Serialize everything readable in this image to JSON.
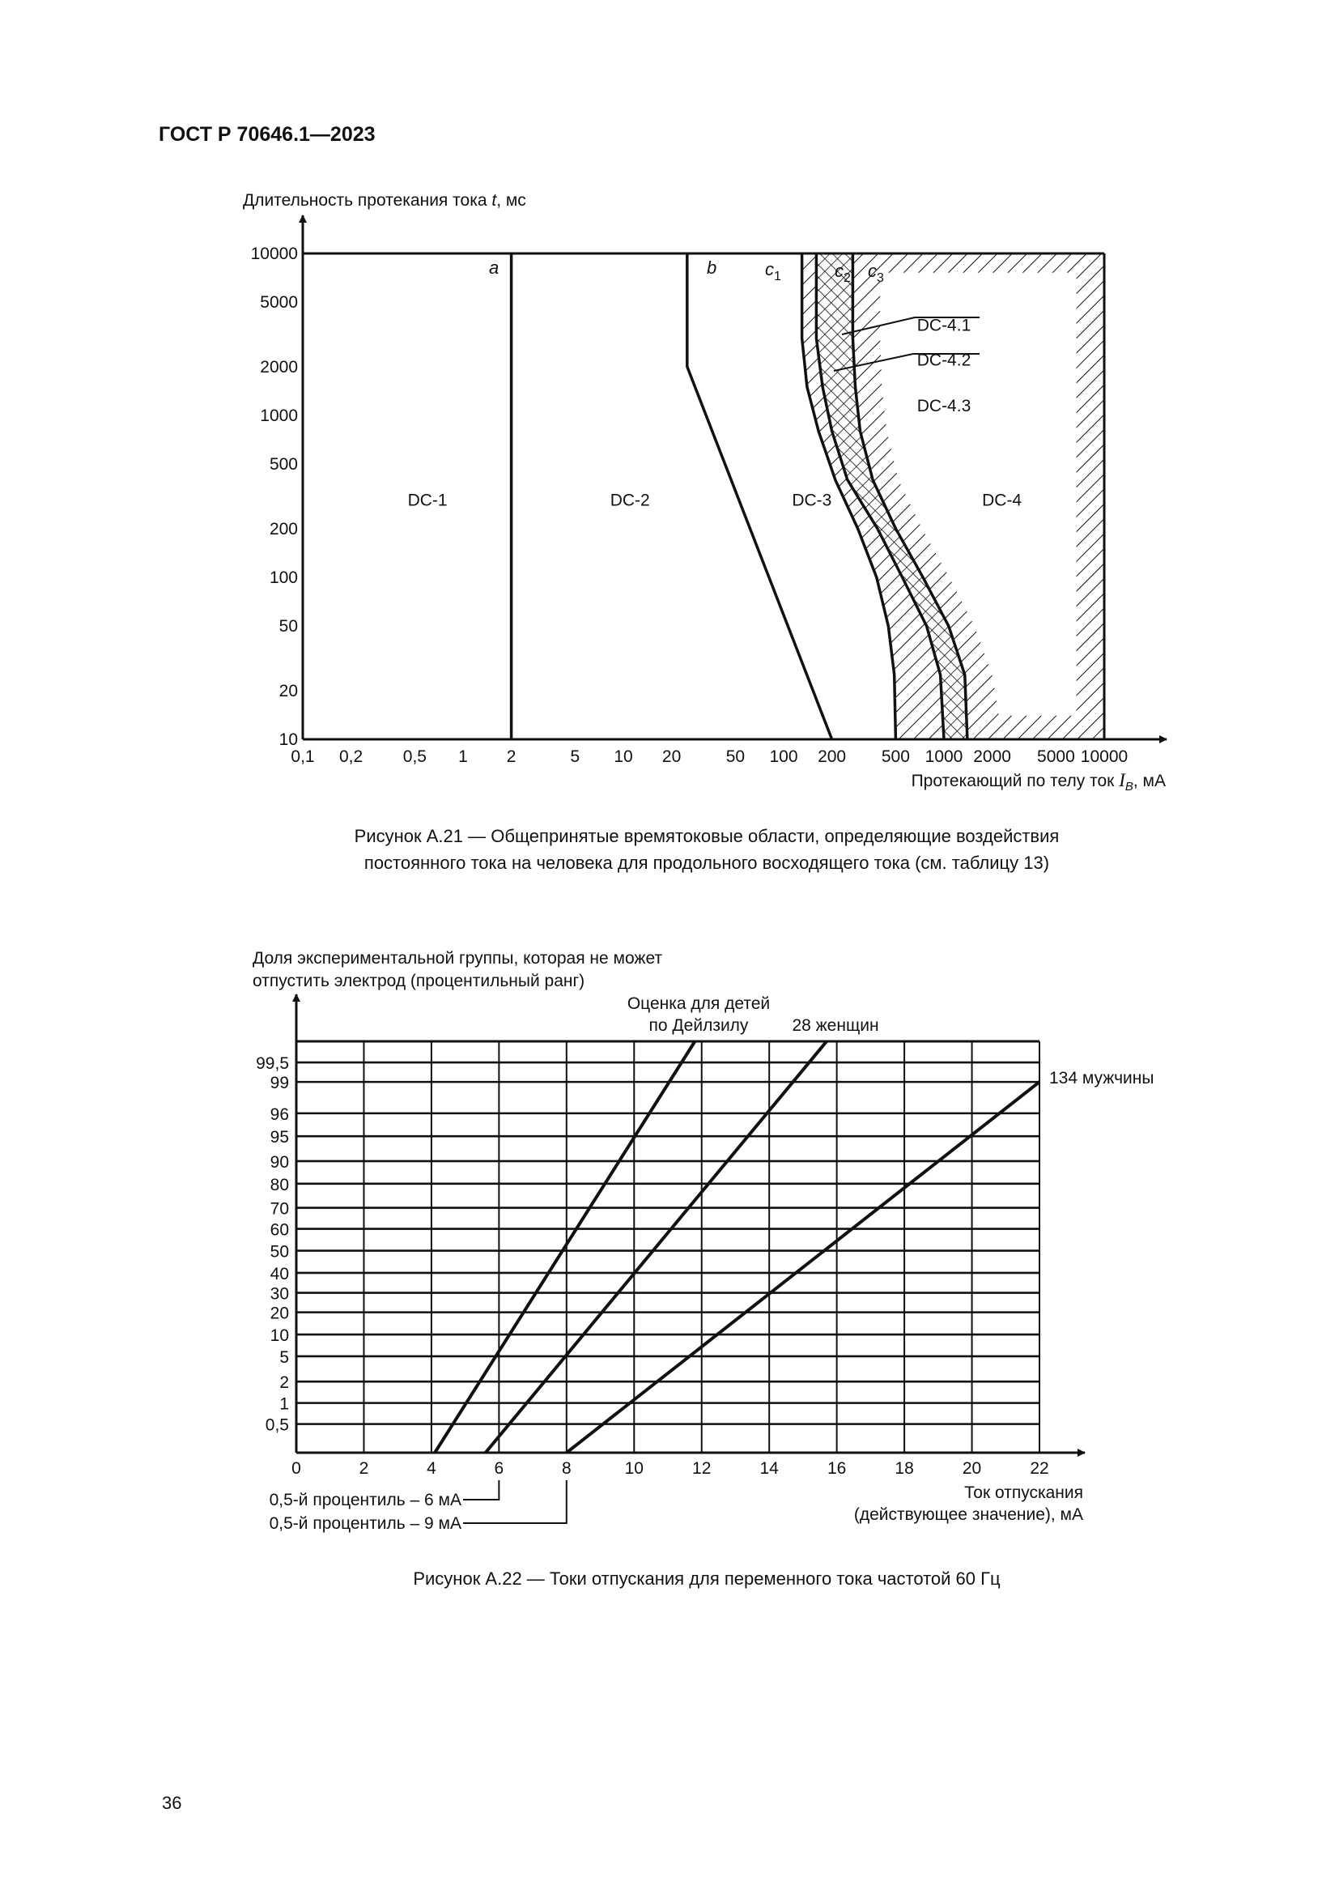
{
  "header": {
    "doc_id": "ГОСТ Р 70646.1—2023"
  },
  "figure_a21": {
    "caption_line1": "Рисунок А.21 — Общепринятые времятоковые области, определяющие воздействия",
    "caption_line2": "постоянного тока на человека для продольного восходящего тока (см. таблицу 13)"
  },
  "figure_a22": {
    "caption": "Рисунок А.22 — Токи отпускания для переменного тока частотой 60 Гц"
  },
  "page_number": "36",
  "chart_data": [
    {
      "type": "line",
      "title": "Рисунок А.21",
      "ylabel": {
        "prefix": "Длительность протекания тока ",
        "var": "t",
        "suffix": ", мс"
      },
      "xlabel": {
        "prefix": "Протекающий по телу ток ",
        "var": "I",
        "sub": "B",
        "suffix": ", мА"
      },
      "xscale": "log",
      "yscale": "log",
      "xlim": [
        0.1,
        10000
      ],
      "ylim": [
        10,
        10000
      ],
      "x_ticks": [
        0.1,
        0.2,
        0.5,
        1,
        2,
        5,
        10,
        20,
        50,
        100,
        200,
        500,
        1000,
        2000,
        5000,
        10000
      ],
      "x_tick_labels": [
        "0,1",
        "0,2",
        "0,5",
        "1",
        "2",
        "5",
        "10",
        "20",
        "50",
        "100",
        "200",
        "500",
        "1000",
        "2000",
        "5000",
        "10000"
      ],
      "y_ticks": [
        10,
        20,
        50,
        100,
        200,
        500,
        1000,
        2000,
        5000,
        10000
      ],
      "y_tick_labels": [
        "10",
        "20",
        "50",
        "100",
        "200",
        "500",
        "1000",
        "2000",
        "5000",
        "10000"
      ],
      "curves": [
        {
          "name": "a",
          "label": "a",
          "points": [
            [
              2,
              10
            ],
            [
              2,
              10000
            ]
          ]
        },
        {
          "name": "b",
          "label": "b",
          "points": [
            [
              25,
              10000
            ],
            [
              25,
              2000
            ],
            [
              200,
              10
            ]
          ]
        },
        {
          "name": "c1",
          "label": "c",
          "sub": "1",
          "points": [
            [
              130,
              10000
            ],
            [
              130,
              3000
            ],
            [
              140,
              1500
            ],
            [
              165,
              800
            ],
            [
              210,
              400
            ],
            [
              290,
              200
            ],
            [
              380,
              100
            ],
            [
              450,
              50
            ],
            [
              490,
              25
            ],
            [
              500,
              10
            ]
          ]
        },
        {
          "name": "c2",
          "label": "c",
          "sub": "2",
          "points": [
            [
              160,
              10000
            ],
            [
              160,
              3000
            ],
            [
              175,
              1500
            ],
            [
              200,
              800
            ],
            [
              250,
              400
            ],
            [
              385,
              200
            ],
            [
              550,
              100
            ],
            [
              780,
              50
            ],
            [
              950,
              25
            ],
            [
              1000,
              10
            ]
          ]
        },
        {
          "name": "c3",
          "label": "c",
          "sub": "3",
          "points": [
            [
              270,
              10000
            ],
            [
              270,
              3000
            ],
            [
              280,
              1500
            ],
            [
              300,
              800
            ],
            [
              360,
              400
            ],
            [
              500,
              200
            ],
            [
              740,
              100
            ],
            [
              1070,
              50
            ],
            [
              1350,
              25
            ],
            [
              1400,
              10
            ]
          ]
        }
      ],
      "dc4_hatch_inner_boundary": [
        [
          400,
          7600
        ],
        [
          400,
          3000
        ],
        [
          410,
          1500
        ],
        [
          440,
          800
        ],
        [
          520,
          400
        ],
        [
          730,
          200
        ],
        [
          1080,
          100
        ],
        [
          1550,
          50
        ],
        [
          2000,
          25
        ],
        [
          2200,
          14
        ],
        [
          6700,
          14
        ],
        [
          6700,
          7600
        ]
      ],
      "regions": [
        {
          "label": "DC-1",
          "at": [
            0.6,
            300
          ]
        },
        {
          "label": "DC-2",
          "at": [
            11,
            300
          ]
        },
        {
          "label": "DC-3",
          "at": [
            150,
            300
          ]
        },
        {
          "label": "DC-4",
          "at": [
            2300,
            300
          ]
        },
        {
          "label": "DC-4.1",
          "at": [
            1000,
            3600
          ]
        },
        {
          "label": "DC-4.2",
          "at": [
            1000,
            2200
          ]
        },
        {
          "label": "DC-4.3",
          "at": [
            1000,
            1150
          ]
        }
      ]
    },
    {
      "type": "line",
      "title": "Рисунок А.22",
      "ylabel_lines": [
        "Доля экспериментальной группы, которая не может",
        "отпустить электрод (процентильный ранг)"
      ],
      "xlabel_lines": [
        "Ток отпускания",
        "(действующее значение), мА"
      ],
      "xlim": [
        0,
        22
      ],
      "x_ticks": [
        0,
        2,
        4,
        6,
        8,
        10,
        12,
        14,
        16,
        18,
        20,
        22
      ],
      "x_tick_labels": [
        "0",
        "2",
        "4",
        "6",
        "8",
        "10",
        "12",
        "14",
        "16",
        "18",
        "20",
        "22"
      ],
      "y_tick_labels": [
        "0,5",
        "1",
        "2",
        "5",
        "10",
        "20",
        "30",
        "40",
        "50",
        "60",
        "70",
        "80",
        "90",
        "95",
        "96",
        "99",
        "99,5"
      ],
      "y_ticks": [
        0.5,
        1,
        2,
        5,
        10,
        20,
        30,
        40,
        50,
        60,
        70,
        80,
        90,
        95,
        96,
        99,
        99.5
      ],
      "ylim": [
        "bottom",
        "top"
      ],
      "series": [
        {
          "name": "Оценка для детей по Дейлзилу",
          "label_lines": [
            "Оценка для детей",
            "по Дейлзилу"
          ],
          "points": [
            [
              4.1,
              "bottom"
            ],
            [
              11.8,
              "top"
            ]
          ]
        },
        {
          "name": "28 женщин",
          "label_lines": [
            "28 женщин"
          ],
          "points": [
            [
              5.6,
              "bottom"
            ],
            [
              15.7,
              "top"
            ]
          ]
        },
        {
          "name": "134 мужчины",
          "label_lines": [
            "134 мужчины"
          ],
          "points": [
            [
              8.0,
              "bottom"
            ],
            [
              22,
              99
            ]
          ]
        }
      ],
      "annotations": [
        {
          "text": "0,5-й процентиль – 6 мА",
          "x": 6
        },
        {
          "text": "0,5-й процентиль – 9 мА",
          "x": 8
        }
      ]
    }
  ]
}
